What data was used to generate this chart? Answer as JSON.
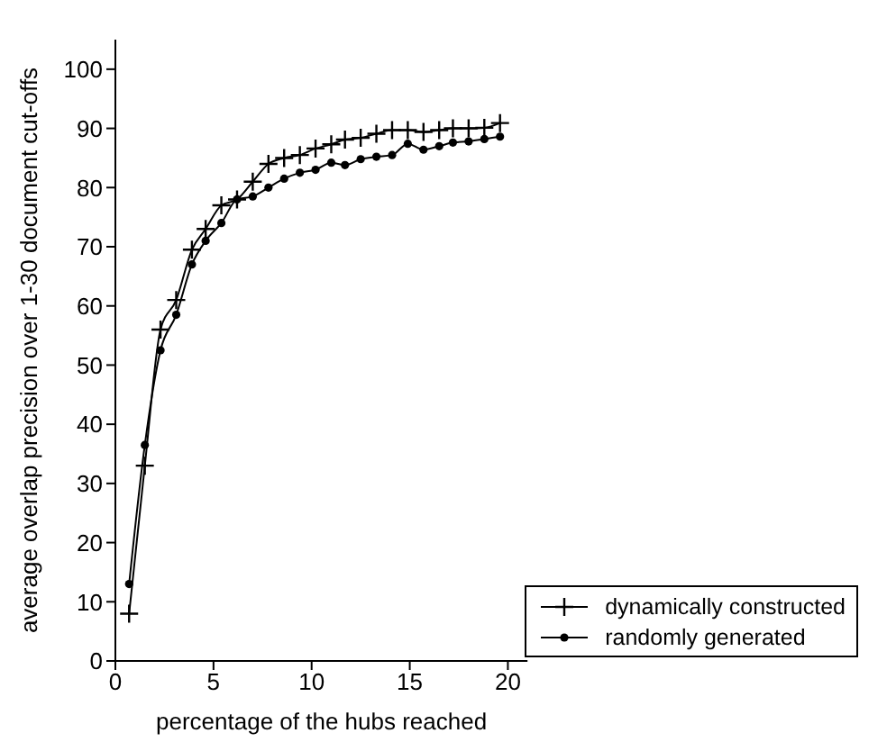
{
  "chart_data": {
    "type": "line",
    "xlabel": "percentage of the hubs reached",
    "ylabel": "average overlap precision over 1-30 document cut-offs",
    "x": [
      0.7,
      1.5,
      2.3,
      3.1,
      3.9,
      4.6,
      5.4,
      6.2,
      7.0,
      7.8,
      8.6,
      9.4,
      10.2,
      11.0,
      11.7,
      12.5,
      13.3,
      14.1,
      14.9,
      15.7,
      16.5,
      17.2,
      18.0,
      18.8,
      19.6
    ],
    "series": [
      {
        "name": "dynamically constructed",
        "color": "#000000",
        "marker": "cross",
        "values": [
          8,
          33,
          56,
          61,
          69.5,
          73,
          77,
          78,
          81,
          84,
          85,
          85.5,
          86.6,
          87.3,
          88.1,
          88.4,
          89.1,
          89.7,
          89.7,
          89.4,
          89.7,
          90,
          90,
          90.1,
          90.9
        ]
      },
      {
        "name": "randomly generated",
        "color": "#000000",
        "marker": "circle",
        "values": [
          13,
          36.5,
          52.5,
          58.5,
          67,
          71,
          74,
          78,
          78.5,
          80,
          81.5,
          82.5,
          83,
          84.2,
          83.8,
          84.8,
          85.2,
          85.5,
          87.4,
          86.4,
          87,
          87.6,
          87.8,
          88.2,
          88.6
        ]
      }
    ],
    "xlim": [
      0,
      21
    ],
    "xticks": [
      0,
      5,
      10,
      15,
      20
    ],
    "ylim": [
      0,
      105
    ],
    "yticks": [
      0,
      10,
      20,
      30,
      40,
      50,
      60,
      70,
      80,
      90,
      100
    ],
    "grid": false,
    "legend": "bottom right",
    "line_style": "solid"
  }
}
